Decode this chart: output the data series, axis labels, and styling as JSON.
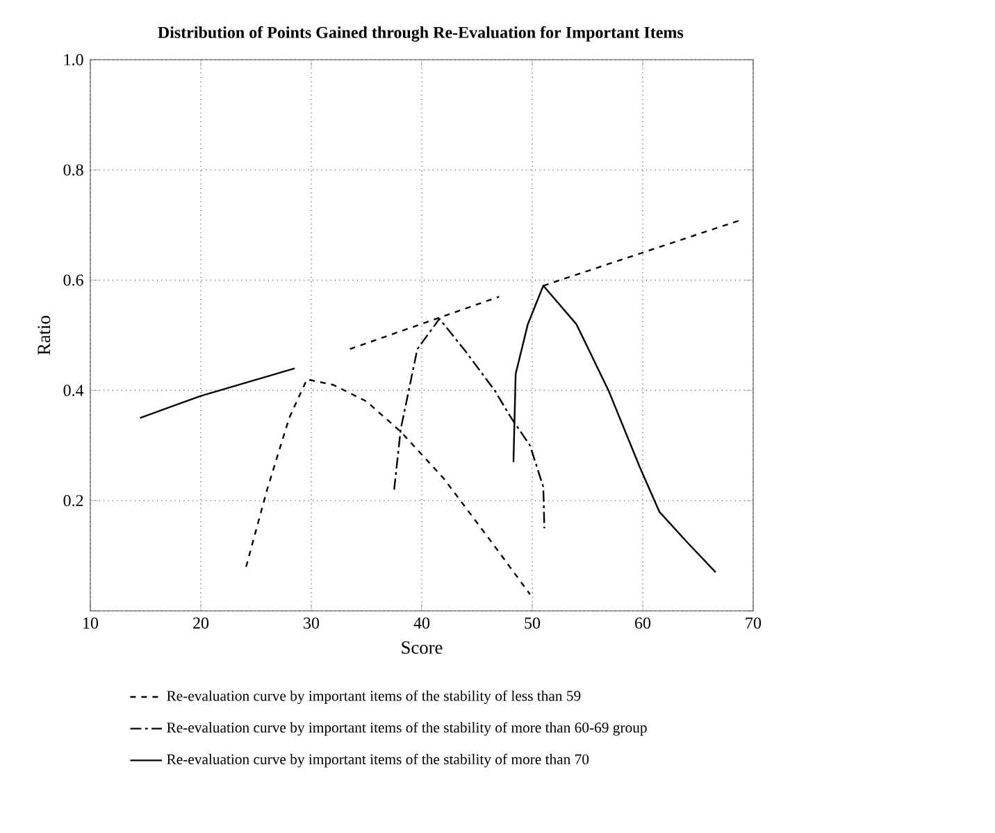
{
  "chart_data": {
    "type": "line",
    "title": "Distribution of Points Gained through Re-Evaluation for Important Items",
    "xlabel": "Score",
    "ylabel": "Ratio",
    "xlim": [
      10,
      70
    ],
    "xticks": [
      10,
      20,
      30,
      40,
      50,
      60,
      70
    ],
    "ylim": [
      0,
      1.0
    ],
    "yticks": [
      {
        "value": 0,
        "label": null
      },
      0.2,
      0.4,
      0.6,
      0.8,
      {
        "value": 1.0,
        "label": "1.0"
      }
    ],
    "grid": true,
    "legend": "bottom",
    "marker": "none",
    "series": [
      {
        "name": "Re-evaluation curve by important items of the stability of less than 59",
        "color": "#000000",
        "line_style": "dashed",
        "x": [
          24.1,
          26,
          28,
          29.6,
          32,
          35,
          38.1,
          42,
          46.5,
          49.8
        ],
        "values": [
          0.08,
          0.22,
          0.35,
          0.42,
          0.41,
          0.38,
          0.325,
          0.24,
          0.12,
          0.03
        ]
      },
      {
        "name": "Re-evaluation curve by important items of the stability of more than 60-69 group",
        "color": "#000000",
        "line_style": "dashdotted",
        "x": [
          37.5,
          38.1,
          39.6,
          41.6,
          44,
          46.6,
          48.1,
          49.8,
          51,
          51.1
        ],
        "values": [
          0.22,
          0.33,
          0.475,
          0.53,
          0.47,
          0.4,
          0.35,
          0.3,
          0.225,
          0.15
        ]
      },
      {
        "name": "Re-evaluation curve by important items of the stability of more than 70",
        "color": "#000000",
        "line_style": "solid",
        "x": [
          48.3,
          48.5,
          49.6,
          51,
          54,
          56.9,
          59.75,
          61.5,
          64,
          66.6
        ],
        "values": [
          0.27,
          0.43,
          0.52,
          0.59,
          0.52,
          0.4,
          0.26,
          0.18,
          0.125,
          0.07
        ]
      },
      {
        "color": "#000000",
        "line_style": "solid",
        "x": [
          14.5,
          20,
          28.5
        ],
        "values": [
          0.35,
          0.39,
          0.44
        ]
      },
      {
        "color": "#000000",
        "line_style": "dashed",
        "x": [
          33.5,
          47,
          48,
          51,
          69
        ],
        "values": [
          0.475,
          0.57,
          null,
          0.59,
          0.71
        ]
      }
    ]
  }
}
